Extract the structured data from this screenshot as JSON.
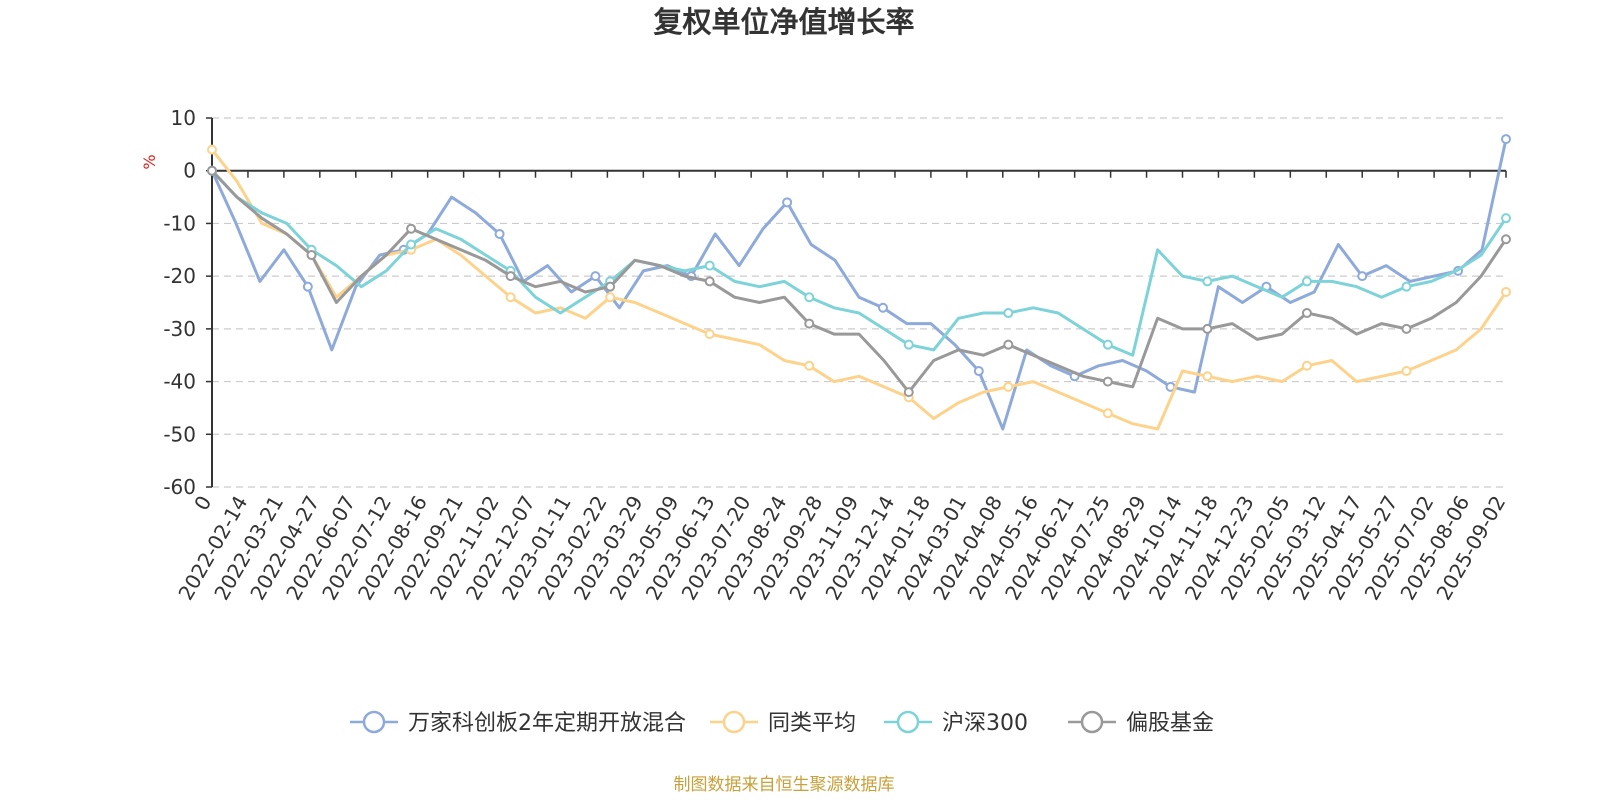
{
  "chart_data": {
    "type": "line",
    "title": "复权单位净值增长率",
    "y_unit": "%",
    "ylim": [
      -60,
      10
    ],
    "y_ticks": [
      10,
      0,
      -10,
      -20,
      -30,
      -40,
      -50,
      -60
    ],
    "x_tick_labels": [
      "0",
      "2022-02-14",
      "2022-03-21",
      "2022-04-27",
      "2022-06-07",
      "2022-07-12",
      "2022-08-16",
      "2022-09-21",
      "2022-11-02",
      "2022-12-07",
      "2023-01-11",
      "2023-02-22",
      "2023-03-29",
      "2023-05-09",
      "2023-06-13",
      "2023-07-20",
      "2023-08-24",
      "2023-09-28",
      "2023-11-09",
      "2023-12-14",
      "2024-01-18",
      "2024-03-01",
      "2024-04-08",
      "2024-05-16",
      "2024-06-21",
      "2024-07-25",
      "2024-08-29",
      "2024-10-14",
      "2024-11-18",
      "2024-12-23",
      "2025-02-05",
      "2025-03-12",
      "2025-04-17",
      "2025-05-27",
      "2025-07-02",
      "2025-08-06",
      "2025-09-02"
    ],
    "grid": "horizontal dashed",
    "legend_position": "bottom",
    "series": [
      {
        "name": "万家科创板2年定期开放混合",
        "color": "#8eaadb",
        "values": [
          0,
          -10,
          -21,
          -15,
          -22,
          -34,
          -22,
          -16,
          -15,
          -12,
          -5,
          -8,
          -12,
          -21,
          -18,
          -23,
          -20,
          -26,
          -19,
          -18,
          -20,
          -12,
          -18,
          -11,
          -6,
          -14,
          -17,
          -24,
          -26,
          -29,
          -29,
          -33,
          -38,
          -49,
          -34,
          -37,
          -39,
          -37,
          -36,
          -38,
          -41,
          -42,
          -22,
          -25,
          -22,
          -25,
          -23,
          -14,
          -20,
          -18,
          -21,
          -20,
          -19,
          -15,
          6
        ]
      },
      {
        "name": "同类平均",
        "color": "#fdd38c",
        "values": [
          4,
          -2,
          -10,
          -12,
          -16,
          -24,
          -20,
          -16,
          -15,
          -13,
          -16,
          -20,
          -24,
          -27,
          -26,
          -28,
          -24,
          -25,
          -27,
          -29,
          -31,
          -32,
          -33,
          -36,
          -37,
          -40,
          -39,
          -41,
          -43,
          -47,
          -44,
          -42,
          -41,
          -40,
          -42,
          -44,
          -46,
          -48,
          -49,
          -38,
          -39,
          -40,
          -39,
          -40,
          -37,
          -36,
          -40,
          -39,
          -38,
          -36,
          -34,
          -30,
          -23
        ]
      },
      {
        "name": "沪深300",
        "color": "#7dd3d8",
        "values": [
          0,
          -5,
          -8,
          -10,
          -15,
          -18,
          -22,
          -19,
          -14,
          -11,
          -13,
          -16,
          -19,
          -24,
          -27,
          -24,
          -21,
          -17,
          -18,
          -19,
          -18,
          -21,
          -22,
          -21,
          -24,
          -26,
          -27,
          -30,
          -33,
          -34,
          -28,
          -27,
          -27,
          -26,
          -27,
          -30,
          -33,
          -35,
          -15,
          -20,
          -21,
          -20,
          -22,
          -24,
          -21,
          -21,
          -22,
          -24,
          -22,
          -21,
          -19,
          -16,
          -9
        ]
      },
      {
        "name": "偏股基金",
        "color": "#999999",
        "values": [
          0,
          -5,
          -9,
          -12,
          -16,
          -25,
          -20,
          -16,
          -11,
          -13,
          -15,
          -17,
          -20,
          -22,
          -21,
          -23,
          -22,
          -17,
          -18,
          -20,
          -21,
          -24,
          -25,
          -24,
          -29,
          -31,
          -31,
          -36,
          -42,
          -36,
          -34,
          -35,
          -33,
          -35,
          -37,
          -39,
          -40,
          -41,
          -28,
          -30,
          -30,
          -29,
          -32,
          -31,
          -27,
          -28,
          -31,
          -29,
          -30,
          -28,
          -25,
          -20,
          -13
        ]
      }
    ]
  },
  "source_note": "制图数据来自恒生聚源数据库"
}
